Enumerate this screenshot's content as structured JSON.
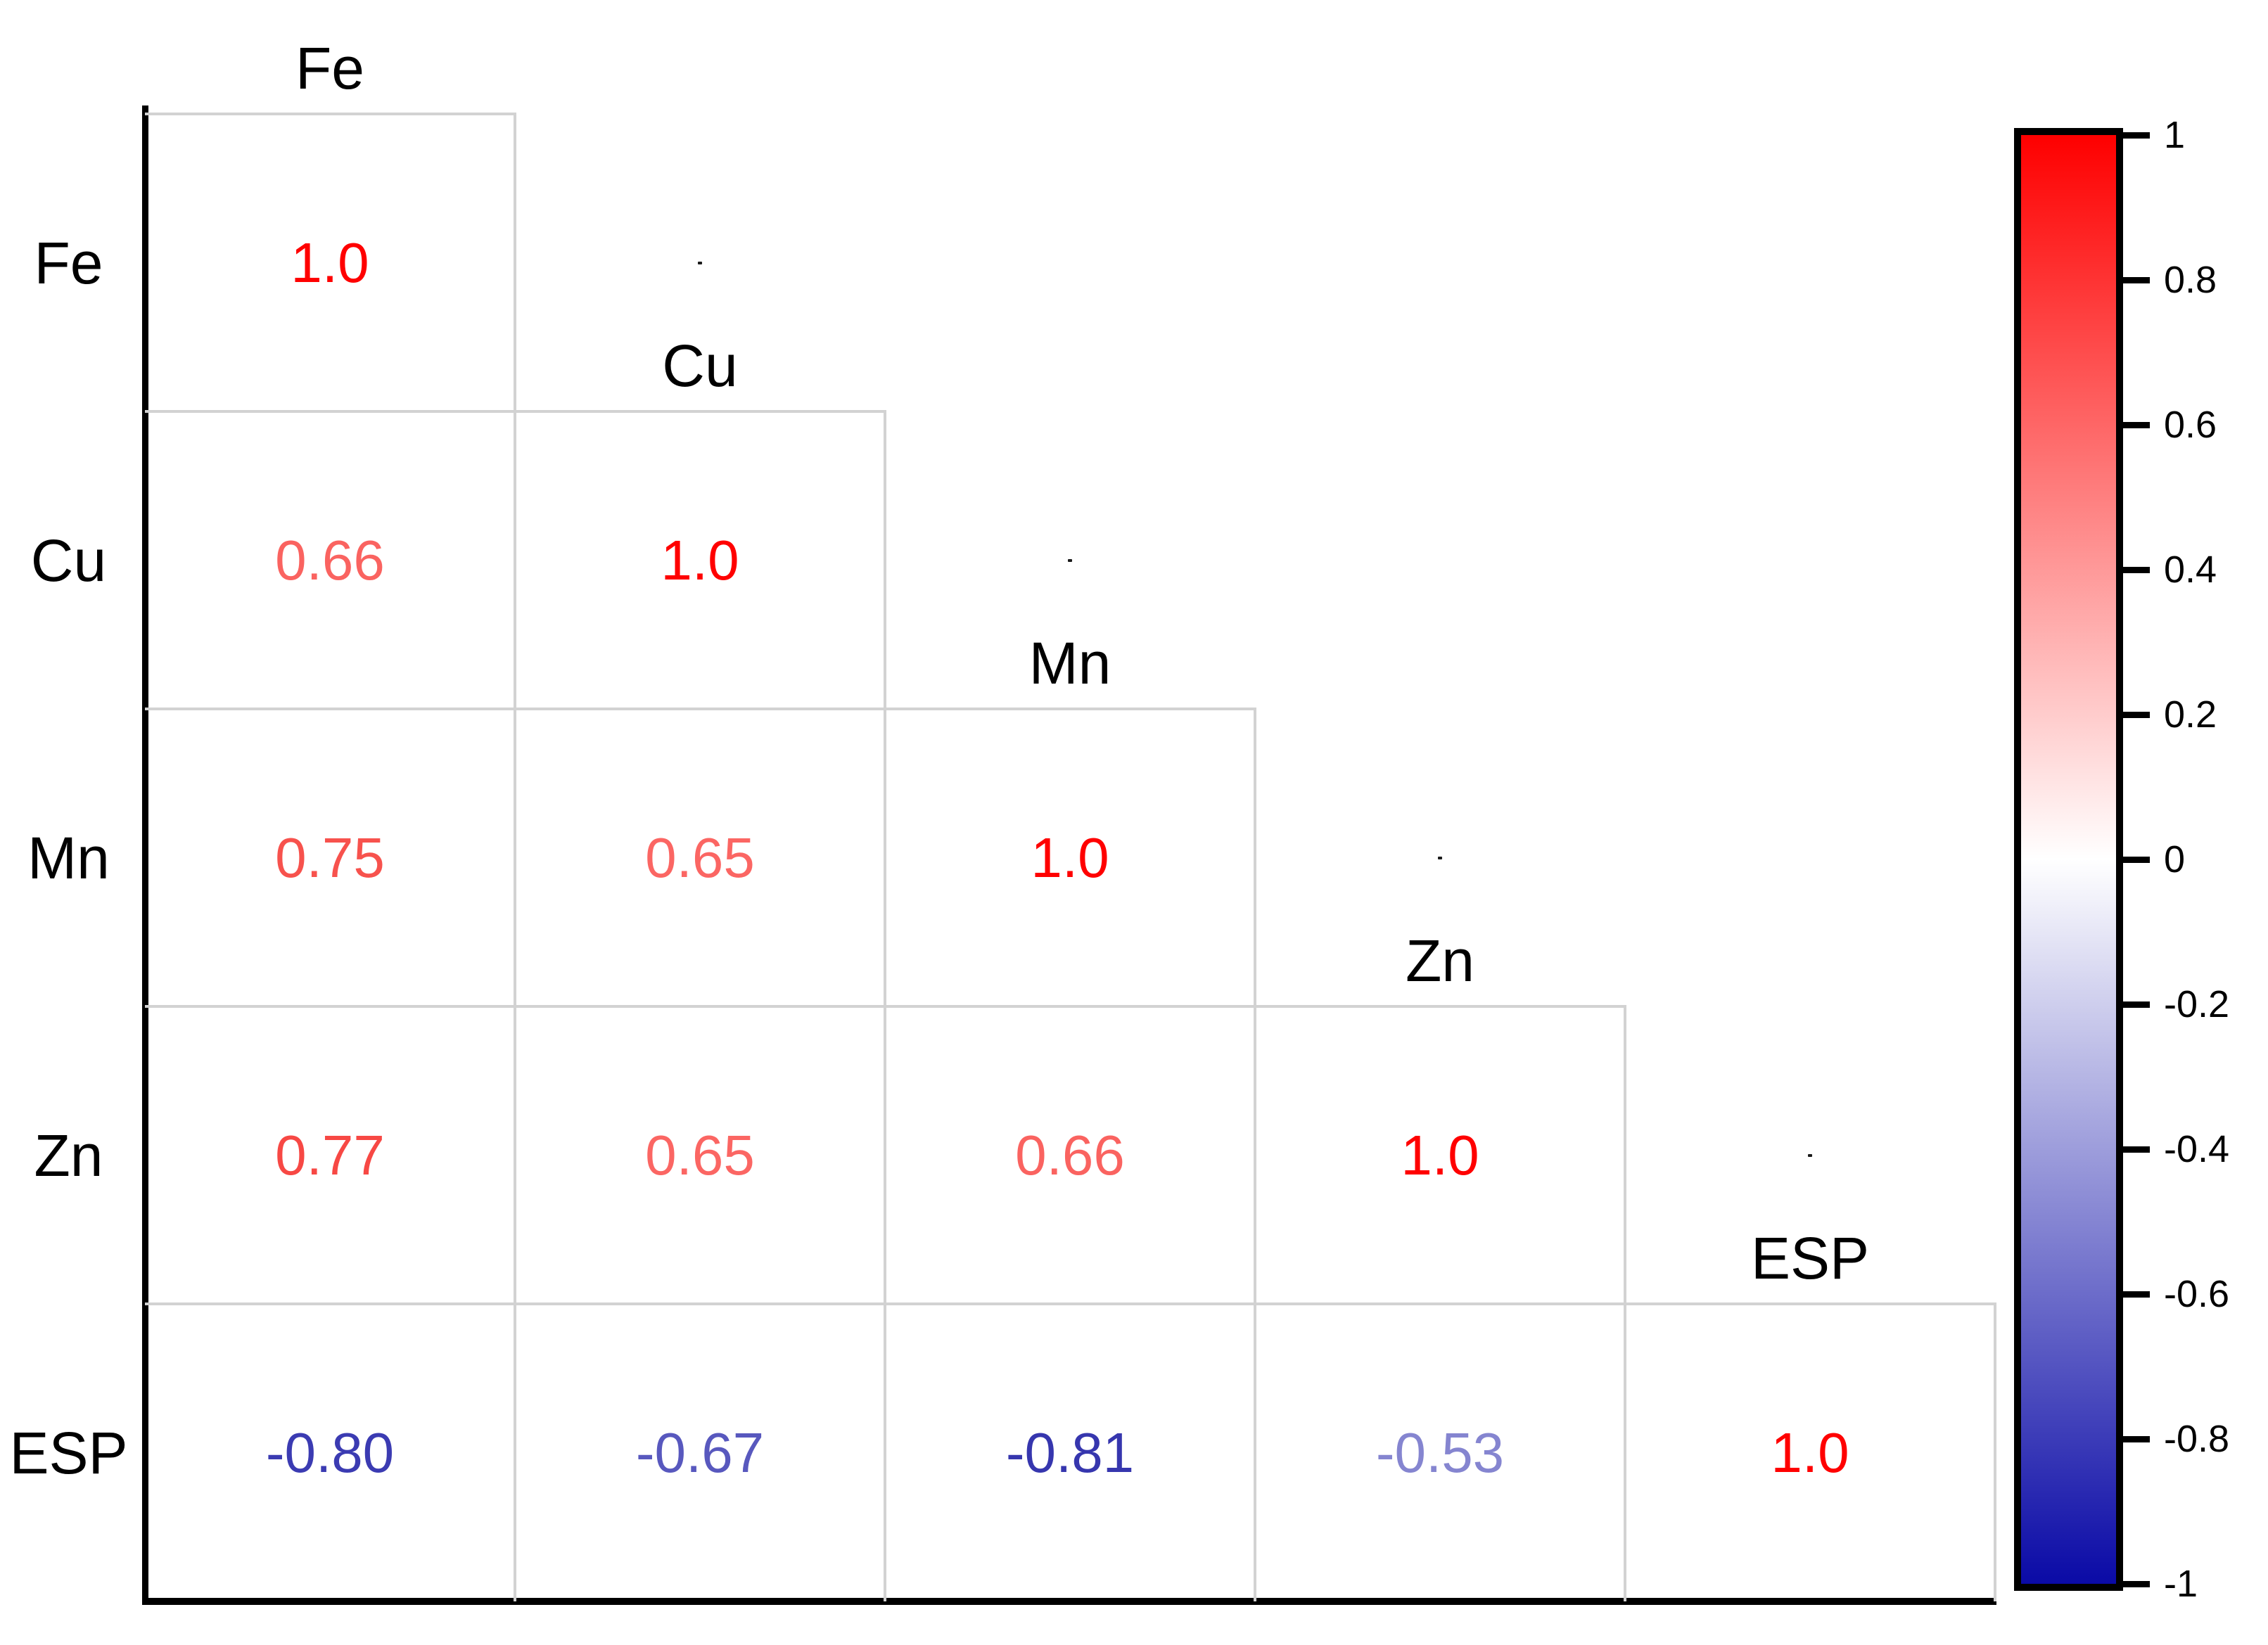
{
  "figure": {
    "background_color": "#ffffff",
    "grid_color": "#d2d2d2",
    "axis_color": "#000000"
  },
  "chart_data": {
    "type": "heatmap",
    "subtype": "correlation-matrix-lower-triangle",
    "title": "",
    "variables": [
      "Fe",
      "Cu",
      "Mn",
      "Zn",
      "ESP"
    ],
    "row_labels": [
      "Fe",
      "Cu",
      "Mn",
      "Zn",
      "ESP"
    ],
    "column_labels": [
      "Fe",
      "Cu",
      "Mn",
      "Zn",
      "ESP"
    ],
    "matrix_lower_triangle": [
      [
        1.0
      ],
      [
        0.66,
        1.0
      ],
      [
        0.75,
        0.65,
        1.0
      ],
      [
        0.77,
        0.65,
        0.66,
        1.0
      ],
      [
        -0.8,
        -0.67,
        -0.81,
        -0.53,
        1.0
      ]
    ],
    "cells": [
      {
        "row": 0,
        "col": 0,
        "label": "1.0",
        "value": 1.0,
        "color": "#ff0000"
      },
      {
        "row": 1,
        "col": 0,
        "label": "0.66",
        "value": 0.66,
        "color": "#fa6360"
      },
      {
        "row": 1,
        "col": 1,
        "label": "1.0",
        "value": 1.0,
        "color": "#ff0000"
      },
      {
        "row": 2,
        "col": 0,
        "label": "0.75",
        "value": 0.75,
        "color": "#f7524d"
      },
      {
        "row": 2,
        "col": 1,
        "label": "0.65",
        "value": 0.65,
        "color": "#fb6663"
      },
      {
        "row": 2,
        "col": 2,
        "label": "1.0",
        "value": 1.0,
        "color": "#ff0000"
      },
      {
        "row": 3,
        "col": 0,
        "label": "0.77",
        "value": 0.77,
        "color": "#f74844"
      },
      {
        "row": 3,
        "col": 1,
        "label": "0.65",
        "value": 0.65,
        "color": "#fb6663"
      },
      {
        "row": 3,
        "col": 2,
        "label": "0.66",
        "value": 0.66,
        "color": "#fa6360"
      },
      {
        "row": 3,
        "col": 3,
        "label": "1.0",
        "value": 1.0,
        "color": "#ff0000"
      },
      {
        "row": 4,
        "col": 0,
        "label": "-0.80",
        "value": -0.8,
        "color": "#3b3bb2"
      },
      {
        "row": 4,
        "col": 1,
        "label": "-0.67",
        "value": -0.67,
        "color": "#5858be"
      },
      {
        "row": 4,
        "col": 2,
        "label": "-0.81",
        "value": -0.81,
        "color": "#3636ae"
      },
      {
        "row": 4,
        "col": 3,
        "label": "-0.53",
        "value": -0.53,
        "color": "#8585d0"
      },
      {
        "row": 4,
        "col": 4,
        "label": "1.0",
        "value": 1.0,
        "color": "#ff0000"
      }
    ],
    "upper_triangle_specks": [
      [
        0,
        1
      ],
      [
        1,
        2
      ],
      [
        2,
        3
      ],
      [
        3,
        4
      ]
    ],
    "grid": true,
    "colorbar": {
      "position": "right",
      "min": -1,
      "max": 1,
      "gradient_stops": [
        {
          "offset": 0,
          "color": "#fe0000"
        },
        {
          "offset": 0.5,
          "color": "#ffffff"
        },
        {
          "offset": 1,
          "color": "#0a0aa6"
        }
      ],
      "ticks": [
        {
          "value": 1,
          "label": "1"
        },
        {
          "value": 0.8,
          "label": "0.8"
        },
        {
          "value": 0.6,
          "label": "0.6"
        },
        {
          "value": 0.4,
          "label": "0.4"
        },
        {
          "value": 0.2,
          "label": "0.2"
        },
        {
          "value": 0,
          "label": "0"
        },
        {
          "value": -0.2,
          "label": "-0.2"
        },
        {
          "value": -0.4,
          "label": "-0.4"
        },
        {
          "value": -0.6,
          "label": "-0.6"
        },
        {
          "value": -0.8,
          "label": "-0.8"
        },
        {
          "value": -1,
          "label": "-1"
        }
      ]
    }
  }
}
